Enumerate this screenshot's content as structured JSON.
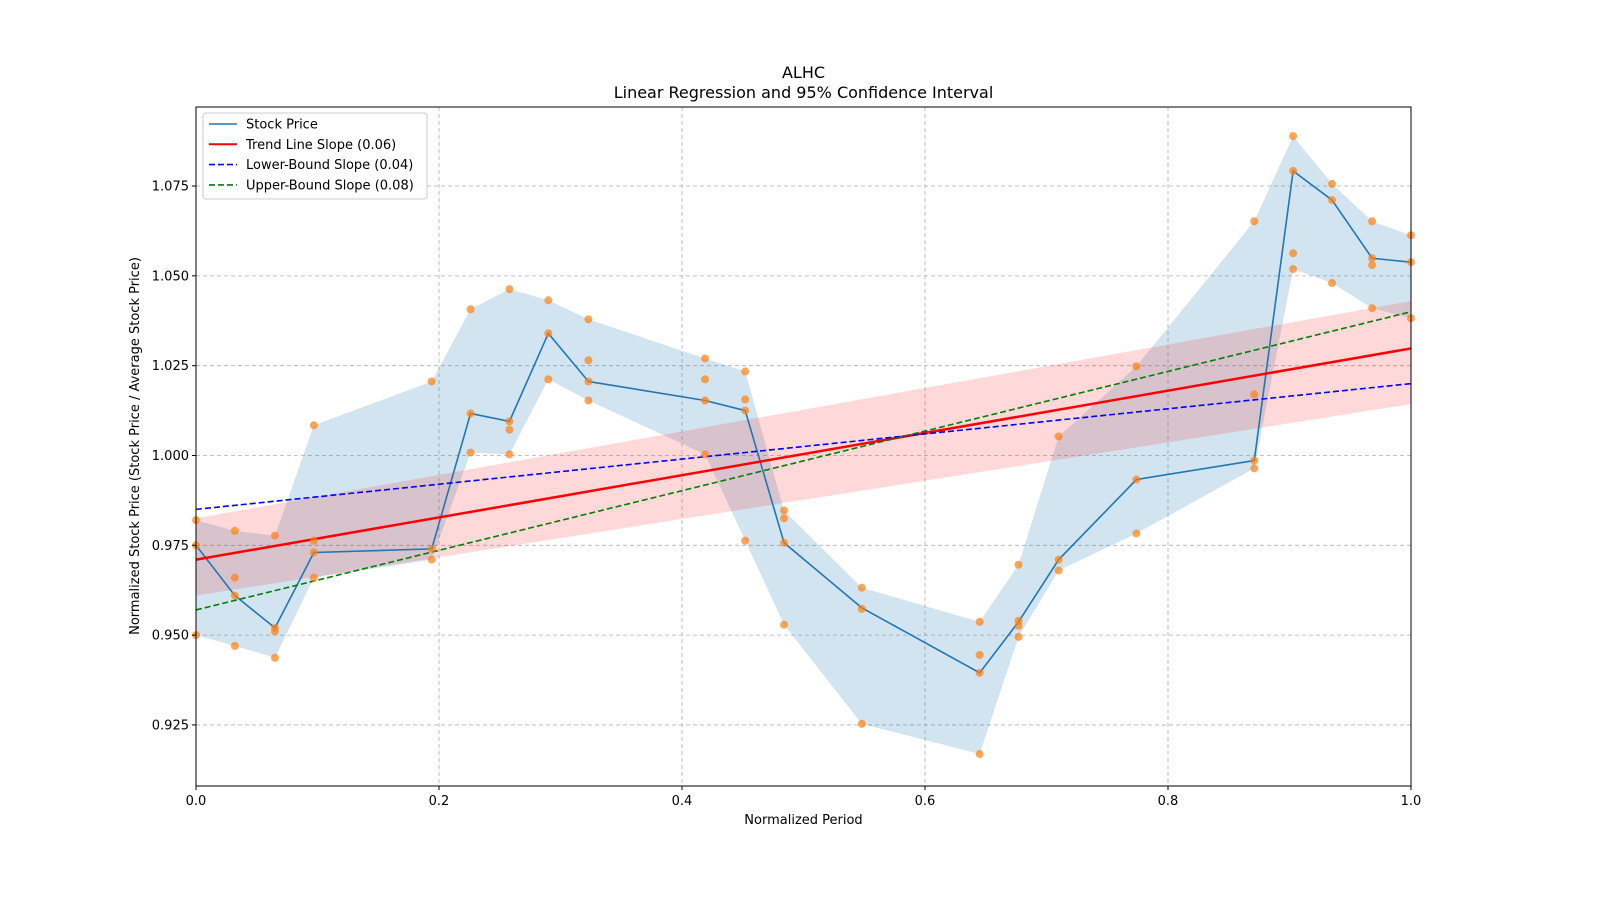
{
  "chart_data": {
    "type": "line",
    "title": "ALHC",
    "subtitle": "Linear Regression and 95% Confidence Interval",
    "xlabel": "Normalized Period",
    "ylabel": "Normalized Stock Price (Stock Price / Average Stock Price)",
    "xlim": [
      0,
      1
    ],
    "ylim": [
      0.908,
      1.097
    ],
    "xticks": [
      0,
      0.2,
      0.4,
      0.6,
      0.8,
      1.0
    ],
    "xtick_labels": [
      "0.0",
      "0.2",
      "0.4",
      "0.6",
      "0.8",
      "1.0"
    ],
    "yticks": [
      0.925,
      0.95,
      0.975,
      1.0,
      1.025,
      1.05,
      1.075
    ],
    "ytick_labels": [
      "0.925",
      "0.950",
      "0.975",
      "1.000",
      "1.025",
      "1.050",
      "1.075"
    ],
    "grid": true,
    "legend_placement": "top-left",
    "colors": {
      "price": "#1f77b4",
      "scatter": "#ff7f0e",
      "trend": "#ff0000",
      "lower": "#0000ff",
      "upper": "#008000"
    },
    "legend": [
      "Stock Price",
      "Trend Line Slope (0.06)",
      "Lower-Bound Slope (0.04)",
      "Upper-Bound Slope (0.08)"
    ],
    "stock_price": {
      "x": [
        0,
        0.032,
        0.065,
        0.097,
        0.194,
        0.226,
        0.258,
        0.29,
        0.323,
        0.419,
        0.452,
        0.484,
        0.548,
        0.645,
        0.677,
        0.71,
        0.774,
        0.871,
        0.903,
        0.935,
        0.968,
        1.0
      ],
      "y": [
        0.975,
        0.961,
        0.952,
        0.973,
        0.974,
        1.0117,
        1.0095,
        1.034,
        1.0206,
        1.0153,
        1.0125,
        0.9757,
        0.9576,
        0.9395,
        0.9537,
        0.971,
        0.9933,
        0.9986,
        1.0792,
        1.0711,
        1.0549,
        1.0538
      ]
    },
    "scatter": [
      [
        0.982,
        0.975,
        0.95
      ],
      [
        0.979,
        0.966,
        0.961,
        0.947
      ],
      [
        0.9777,
        0.952,
        0.951,
        0.9437
      ],
      [
        1.0084,
        0.9763,
        0.973,
        0.966
      ],
      [
        1.0206,
        0.974,
        0.971
      ],
      [
        1.0407,
        1.0117,
        1.0008
      ],
      [
        1.0463,
        1.0095,
        1.0072,
        1.0003
      ],
      [
        1.0432,
        1.034,
        1.0212
      ],
      [
        1.0379,
        1.0265,
        1.0206,
        1.0153
      ],
      [
        1.027,
        1.0212,
        1.0153,
        1.0003
      ],
      [
        1.0234,
        1.0156,
        1.0125,
        0.9763
      ],
      [
        0.9847,
        0.9825,
        0.9757,
        0.9529
      ],
      [
        0.9632,
        0.9573,
        0.9253
      ],
      [
        0.9537,
        0.9445,
        0.9395,
        0.9169
      ],
      [
        0.9696,
        0.954,
        0.9526,
        0.9495
      ],
      [
        1.0053,
        0.971,
        0.968
      ],
      [
        1.0248,
        0.9933,
        0.9783
      ],
      [
        1.0652,
        1.017,
        0.9986,
        0.9964
      ],
      [
        1.0889,
        1.0792,
        1.0563,
        1.0519
      ],
      [
        1.0756,
        1.0711,
        1.048
      ],
      [
        1.0652,
        1.0549,
        1.053,
        1.041
      ],
      [
        1.0613,
        1.0538,
        1.0382
      ]
    ],
    "trend_line": {
      "y_start": 0.971,
      "y_end": 1.0298,
      "ci_start": [
        0.961,
        0.9825
      ],
      "ci_end": [
        1.0143,
        1.043
      ]
    },
    "lower_bound_line": {
      "y_start": 0.985,
      "y_end": 1.02
    },
    "upper_bound_line": {
      "y_start": 0.957,
      "y_end": 1.04
    }
  }
}
